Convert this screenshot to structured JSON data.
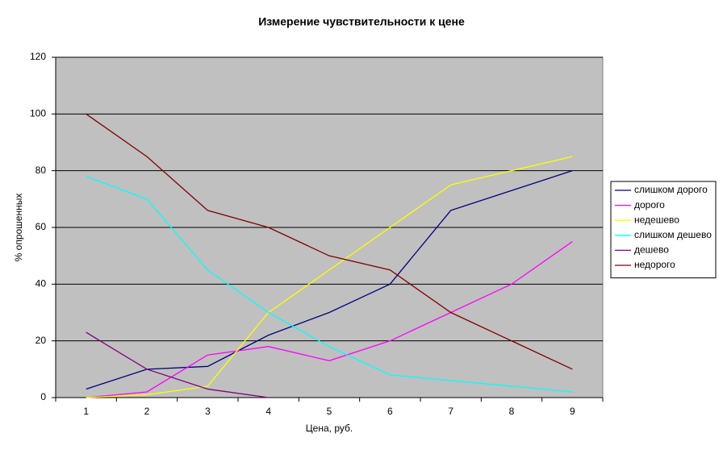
{
  "chart_data": {
    "type": "line",
    "title": "Измерение чувствительности к цене",
    "x_label": "Цена, руб.",
    "y_label": "% опрошенных",
    "categories": [
      "1",
      "2",
      "3",
      "4",
      "5",
      "6",
      "7",
      "8",
      "9"
    ],
    "series": [
      {
        "name": "слишком дорого",
        "color": "#000080",
        "values": [
          3,
          10,
          11,
          22,
          30,
          40,
          66,
          73,
          80
        ]
      },
      {
        "name": "дорого",
        "color": "#ff00ff",
        "values": [
          0,
          2,
          15,
          18,
          13,
          20,
          30,
          40,
          55
        ]
      },
      {
        "name": "недешево",
        "color": "#ffff00",
        "values": [
          0,
          1,
          4,
          30,
          45,
          60,
          75,
          80,
          85
        ]
      },
      {
        "name": "слишком дешево",
        "color": "#00ffff",
        "values": [
          78,
          70,
          45,
          30,
          18,
          8,
          6,
          4,
          2
        ]
      },
      {
        "name": "дешево",
        "color": "#800080",
        "values": [
          23,
          10,
          3,
          0,
          null,
          null,
          null,
          null,
          null
        ]
      },
      {
        "name": "недорого",
        "color": "#800000",
        "values": [
          100,
          85,
          66,
          60,
          50,
          45,
          30,
          20,
          10
        ]
      }
    ],
    "ylim": [
      0,
      120
    ],
    "yticks": [
      0,
      20,
      40,
      60,
      80,
      100,
      120
    ],
    "grid": true,
    "plot_background": "#c0c0c0",
    "legend": "right"
  }
}
